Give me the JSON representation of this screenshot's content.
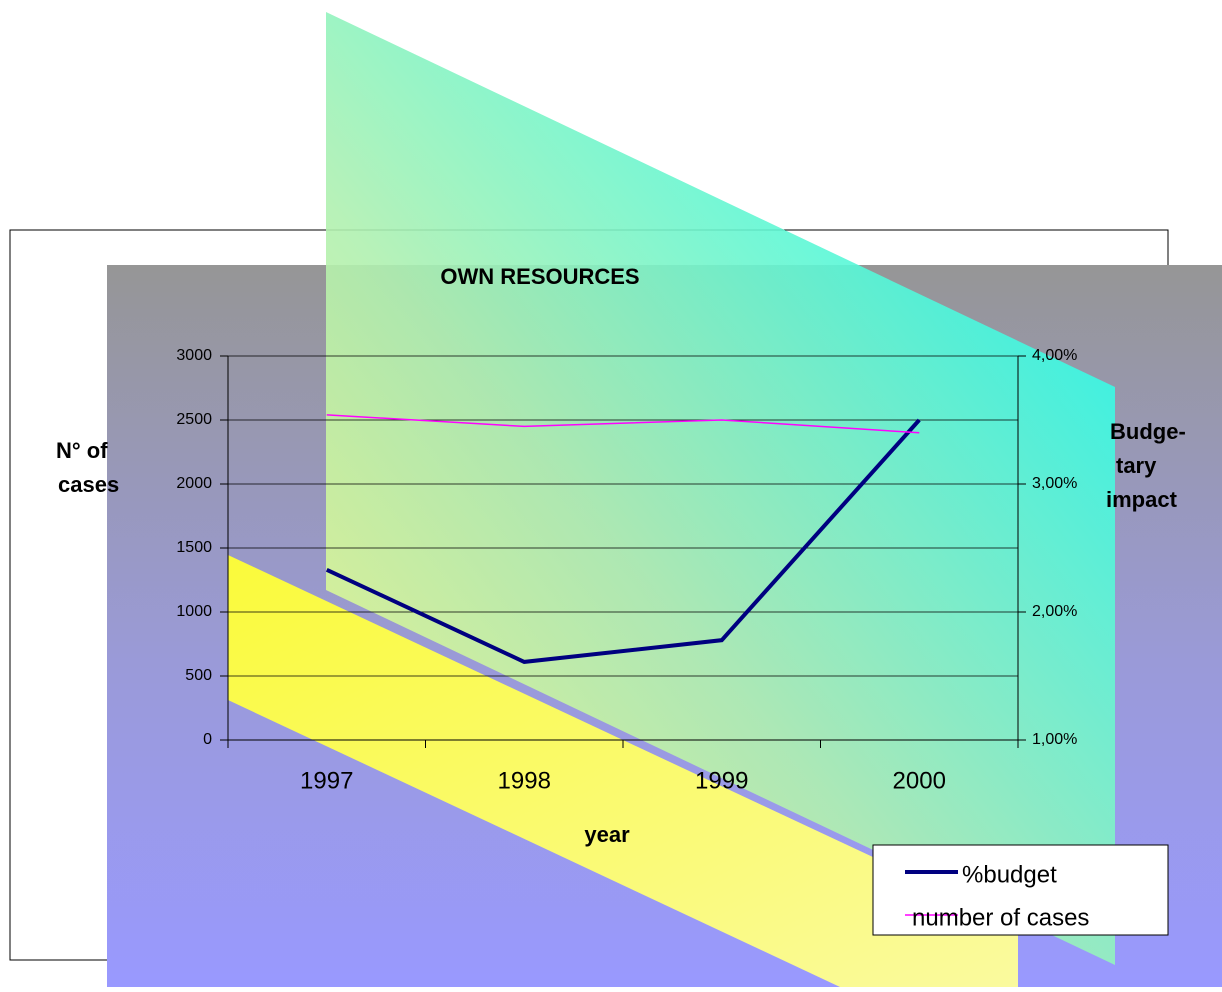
{
  "chart_data": {
    "type": "line",
    "title": "OWN RESOURCES",
    "x_label": "year",
    "y_label_lines": [
      "N° of",
      "cases"
    ],
    "y2_label_lines": [
      "Budge-",
      "tary",
      "impact"
    ],
    "categories": [
      "1997",
      "1998",
      "1999",
      "2000"
    ],
    "series": [
      {
        "name": "%budget",
        "color": "#000080",
        "axis": "y2",
        "values": [
          2.33,
          1.61,
          1.78,
          3.5
        ]
      },
      {
        "name": "number of cases",
        "color": "#ff00ff",
        "values": [
          2540,
          2450,
          2500,
          2400
        ]
      }
    ],
    "ylim": [
      0,
      3000
    ],
    "yticks": [
      0,
      500,
      1000,
      1500,
      2000,
      2500,
      3000
    ],
    "y2lim": [
      1,
      4
    ],
    "y2ticks": [
      {
        "value": 1,
        "label": "1,00%"
      },
      {
        "value": 2,
        "label": "2,00%"
      },
      {
        "value": 3,
        "label": "3,00%"
      },
      {
        "value": 4,
        "label": "4,00%"
      }
    ],
    "grid": true,
    "legend": "lower right"
  }
}
